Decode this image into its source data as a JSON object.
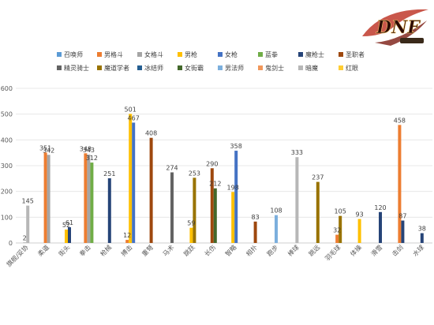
{
  "logo": {
    "text": "DNF"
  },
  "colors": {
    "召唤师": "#5b9bd5",
    "男格斗": "#ed7d31",
    "女格斗": "#a5a5a5",
    "男枪": "#ffc000",
    "女枪": "#4472c4",
    "蓝拳": "#70ad47",
    "魔枪士": "#264478",
    "圣职者": "#9e480e",
    "精灵骑士": "#636363",
    "魔道学者": "#997300",
    "冰结师": "#255e91",
    "女街霸": "#43682b",
    "男法师": "#7cafdd",
    "鬼剑士": "#f1975a",
    "暗魔": "#b7b7b7",
    "红眼": "#ffcd33"
  },
  "chart_data": {
    "type": "bar",
    "title": "",
    "xlabel": "",
    "ylabel": "",
    "ylim": [
      0,
      600
    ],
    "yticks": [
      0,
      100,
      200,
      300,
      400,
      500,
      600
    ],
    "grid": true,
    "legend_position": "top",
    "legend": [
      "召唤师",
      "男格斗",
      "女格斗",
      "男枪",
      "女枪",
      "蓝拳",
      "魔枪士",
      "圣职者",
      "精灵骑士",
      "魔道学者",
      "冰结师",
      "女街霸",
      "男法师",
      "鬼剑士",
      "暗魔",
      "红眼"
    ],
    "categories": [
      "旗舰/妥协",
      "柔道",
      "街头",
      "拳击",
      "枪械",
      "搏击",
      "重弩",
      "马术",
      "跳跃",
      "长伤",
      "智略",
      "相扑",
      "跑步",
      "棒球",
      "跳远",
      "羽毛球",
      "体操",
      "滑雪",
      "击剑",
      "水球"
    ],
    "series": [
      {
        "name": "召唤师",
        "values": [
          null,
          null,
          null,
          null,
          null,
          null,
          null,
          null,
          null,
          null,
          null,
          null,
          null,
          null,
          null,
          null,
          null,
          null,
          null,
          null
        ]
      },
      {
        "name": "男格斗",
        "values": [
          null,
          351,
          null,
          348,
          null,
          12,
          null,
          null,
          null,
          null,
          null,
          null,
          null,
          null,
          null,
          32,
          null,
          null,
          458,
          null
        ]
      },
      {
        "name": "女格斗",
        "values": [
          2,
          342,
          null,
          343,
          null,
          null,
          null,
          null,
          null,
          null,
          null,
          null,
          null,
          null,
          null,
          null,
          null,
          null,
          null,
          null
        ]
      },
      {
        "name": "男枪",
        "values": [
          null,
          null,
          52,
          null,
          null,
          501,
          null,
          null,
          59,
          null,
          198,
          null,
          null,
          null,
          null,
          null,
          93,
          null,
          null,
          null
        ]
      },
      {
        "name": "女枪",
        "values": [
          null,
          null,
          null,
          null,
          null,
          467,
          null,
          null,
          null,
          null,
          358,
          null,
          null,
          null,
          null,
          null,
          null,
          null,
          null,
          null
        ]
      },
      {
        "name": "蓝拳",
        "values": [
          null,
          null,
          null,
          312,
          null,
          null,
          null,
          null,
          null,
          null,
          null,
          null,
          null,
          null,
          null,
          null,
          null,
          null,
          null,
          null
        ]
      },
      {
        "name": "魔枪士",
        "values": [
          null,
          null,
          61,
          null,
          251,
          null,
          null,
          null,
          null,
          null,
          null,
          null,
          null,
          null,
          null,
          null,
          null,
          120,
          87,
          38
        ]
      },
      {
        "name": "圣职者",
        "values": [
          null,
          null,
          null,
          null,
          null,
          null,
          408,
          null,
          null,
          290,
          null,
          83,
          null,
          null,
          null,
          null,
          null,
          null,
          null,
          null
        ]
      },
      {
        "name": "精灵骑士",
        "values": [
          null,
          null,
          null,
          null,
          null,
          null,
          null,
          274,
          null,
          null,
          null,
          null,
          null,
          null,
          null,
          null,
          null,
          null,
          null,
          null
        ]
      },
      {
        "name": "魔道学者",
        "values": [
          null,
          null,
          null,
          null,
          null,
          null,
          null,
          null,
          253,
          null,
          null,
          null,
          null,
          null,
          237,
          105,
          null,
          null,
          null,
          null
        ]
      },
      {
        "name": "冰结师",
        "values": [
          null,
          null,
          null,
          null,
          null,
          null,
          null,
          null,
          null,
          null,
          null,
          null,
          null,
          null,
          null,
          null,
          null,
          null,
          null,
          null
        ]
      },
      {
        "name": "女街霸",
        "values": [
          null,
          null,
          null,
          null,
          null,
          null,
          null,
          null,
          null,
          212,
          null,
          null,
          null,
          null,
          null,
          null,
          null,
          null,
          null,
          null
        ]
      },
      {
        "name": "男法师",
        "values": [
          null,
          null,
          null,
          null,
          null,
          null,
          null,
          null,
          null,
          null,
          null,
          null,
          108,
          null,
          null,
          null,
          null,
          null,
          null,
          null
        ]
      },
      {
        "name": "鬼剑士",
        "values": [
          null,
          null,
          null,
          null,
          null,
          null,
          null,
          null,
          null,
          null,
          null,
          null,
          null,
          null,
          null,
          null,
          null,
          null,
          null,
          null
        ]
      },
      {
        "name": "暗魔",
        "values": [
          145,
          null,
          null,
          null,
          null,
          null,
          null,
          null,
          null,
          null,
          null,
          null,
          null,
          333,
          null,
          null,
          null,
          null,
          null,
          null
        ]
      },
      {
        "name": "红眼",
        "values": [
          null,
          null,
          null,
          null,
          null,
          null,
          null,
          null,
          null,
          null,
          null,
          null,
          null,
          null,
          null,
          null,
          null,
          null,
          null,
          null
        ]
      }
    ]
  }
}
